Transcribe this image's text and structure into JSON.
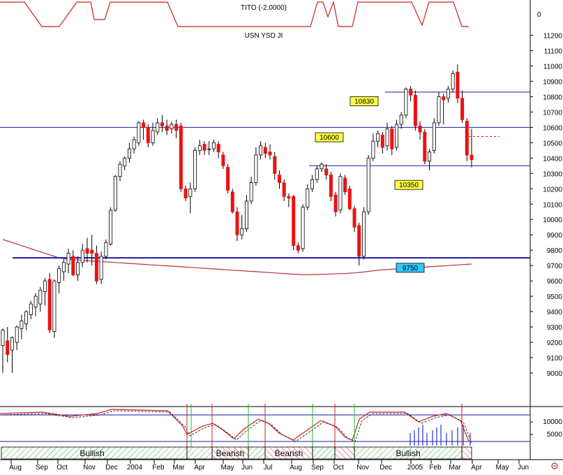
{
  "indicator_top": {
    "label": "TITO (-2.0000)",
    "axis_label": "0",
    "color": "#cc2222"
  },
  "main_chart_label": "USN YSD JI",
  "chart_data": {
    "type": "candlestick",
    "ylim": [
      8800,
      11250
    ],
    "y_ticks": [
      9000,
      9100,
      9200,
      9300,
      9400,
      9500,
      9600,
      9700,
      9800,
      9900,
      10000,
      10100,
      10200,
      10300,
      10400,
      10500,
      10600,
      10700,
      10800,
      10900,
      11000,
      11100,
      11200
    ],
    "y_tick_labels": [
      "9000",
      "9100",
      "9200",
      "9300",
      "9400",
      "9500",
      "9600",
      "9700",
      "9800",
      "9900",
      "10000",
      "10100",
      "10200",
      "10300",
      "10400",
      "10500",
      "10600",
      "10700",
      "10800",
      "10900",
      "11000",
      "11100",
      "11200"
    ],
    "x_labels": [
      "Aug",
      "Sep",
      "Oct",
      "Nov",
      "Dec",
      "2004",
      "Feb",
      "Mar",
      "Apr",
      "May",
      "Jun",
      "Jul",
      "Aug",
      "Sep",
      "Oct",
      "Nov",
      "Dec",
      "2005",
      "Feb",
      "Mar",
      "Apr",
      "May",
      "Jun"
    ],
    "candles": [
      [
        9180,
        9280,
        9000,
        9290
      ],
      [
        9210,
        9120,
        9070,
        9300
      ],
      [
        9150,
        9230,
        9000,
        9240
      ],
      [
        9200,
        9300,
        9150,
        9310
      ],
      [
        9290,
        9340,
        9220,
        9380
      ],
      [
        9320,
        9400,
        9280,
        9410
      ],
      [
        9380,
        9450,
        9350,
        9470
      ],
      [
        9430,
        9500,
        9370,
        9520
      ],
      [
        9450,
        9540,
        9400,
        9560
      ],
      [
        9530,
        9600,
        9440,
        9620
      ],
      [
        9610,
        9280,
        9260,
        9650
      ],
      [
        9270,
        9600,
        9230,
        9610
      ],
      [
        9590,
        9680,
        9520,
        9700
      ],
      [
        9660,
        9720,
        9600,
        9740
      ],
      [
        9710,
        9780,
        9650,
        9810
      ],
      [
        9760,
        9640,
        9630,
        9800
      ],
      [
        9640,
        9720,
        9600,
        9760
      ],
      [
        9720,
        9800,
        9690,
        9840
      ],
      [
        9810,
        9780,
        9720,
        9880
      ],
      [
        9800,
        9780,
        9700,
        9900
      ],
      [
        9780,
        9600,
        9580,
        9830
      ],
      [
        9610,
        9760,
        9580,
        9790
      ],
      [
        9760,
        9850,
        9740,
        9870
      ],
      [
        9840,
        10060,
        9830,
        10080
      ],
      [
        10060,
        10280,
        10050,
        10290
      ],
      [
        10280,
        10360,
        10250,
        10380
      ],
      [
        10350,
        10400,
        10320,
        10410
      ],
      [
        10400,
        10460,
        10370,
        10500
      ],
      [
        10460,
        10520,
        10430,
        10540
      ],
      [
        10500,
        10630,
        10480,
        10640
      ],
      [
        10630,
        10600,
        10520,
        10650
      ],
      [
        10600,
        10500,
        10470,
        10620
      ],
      [
        10500,
        10580,
        10480,
        10630
      ],
      [
        10570,
        10630,
        10550,
        10660
      ],
      [
        10630,
        10610,
        10570,
        10680
      ],
      [
        10610,
        10580,
        10550,
        10650
      ],
      [
        10590,
        10620,
        10560,
        10640
      ],
      [
        10620,
        10580,
        10530,
        10650
      ],
      [
        10610,
        10200,
        10180,
        10630
      ],
      [
        10200,
        10140,
        10120,
        10220
      ],
      [
        10150,
        10200,
        10040,
        10240
      ],
      [
        10200,
        10450,
        10180,
        10470
      ],
      [
        10450,
        10480,
        10420,
        10520
      ],
      [
        10490,
        10450,
        10420,
        10510
      ],
      [
        10460,
        10460,
        10420,
        10510
      ],
      [
        10460,
        10500,
        10440,
        10520
      ],
      [
        10490,
        10440,
        10400,
        10510
      ],
      [
        10420,
        10350,
        10330,
        10440
      ],
      [
        10340,
        10190,
        10170,
        10360
      ],
      [
        10180,
        10050,
        10040,
        10200
      ],
      [
        10050,
        9900,
        9860,
        10080
      ],
      [
        9900,
        9940,
        9870,
        10030
      ],
      [
        9940,
        10120,
        9920,
        10160
      ],
      [
        10120,
        10240,
        10100,
        10280
      ],
      [
        10240,
        10420,
        10220,
        10470
      ],
      [
        10420,
        10480,
        10390,
        10510
      ],
      [
        10470,
        10430,
        10400,
        10500
      ],
      [
        10440,
        10420,
        10390,
        10490
      ],
      [
        10410,
        10300,
        10260,
        10440
      ],
      [
        10290,
        10240,
        10200,
        10320
      ],
      [
        10240,
        10150,
        10120,
        10260
      ],
      [
        10150,
        10140,
        10080,
        10170
      ],
      [
        10150,
        9830,
        9800,
        10160
      ],
      [
        9830,
        9800,
        9780,
        9850
      ],
      [
        9810,
        10080,
        9790,
        10100
      ],
      [
        10080,
        10200,
        10060,
        10230
      ],
      [
        10200,
        10260,
        10180,
        10290
      ],
      [
        10260,
        10330,
        10240,
        10350
      ],
      [
        10330,
        10360,
        10310,
        10370
      ],
      [
        10330,
        10290,
        10260,
        10360
      ],
      [
        10290,
        10150,
        10120,
        10310
      ],
      [
        10160,
        10050,
        10020,
        10180
      ],
      [
        10060,
        10280,
        10040,
        10300
      ],
      [
        10270,
        10180,
        10160,
        10290
      ],
      [
        10200,
        10070,
        10060,
        10220
      ],
      [
        10070,
        9950,
        9920,
        10090
      ],
      [
        9960,
        9760,
        9700,
        9980
      ],
      [
        9760,
        10050,
        9740,
        10080
      ],
      [
        10050,
        10400,
        10030,
        10420
      ],
      [
        10400,
        10510,
        10380,
        10560
      ],
      [
        10510,
        10560,
        10470,
        10580
      ],
      [
        10550,
        10470,
        10430,
        10570
      ],
      [
        10480,
        10590,
        10450,
        10630
      ],
      [
        10590,
        10460,
        10420,
        10610
      ],
      [
        10470,
        10620,
        10450,
        10650
      ],
      [
        10620,
        10680,
        10590,
        10700
      ],
      [
        10680,
        10850,
        10660,
        10860
      ],
      [
        10850,
        10810,
        10770,
        10870
      ],
      [
        10810,
        10610,
        10580,
        10840
      ],
      [
        10610,
        10570,
        10520,
        10640
      ],
      [
        10570,
        10380,
        10360,
        10590
      ],
      [
        10380,
        10440,
        10320,
        10460
      ],
      [
        10450,
        10630,
        10430,
        10660
      ],
      [
        10630,
        10800,
        10610,
        10830
      ],
      [
        10800,
        10780,
        10620,
        10820
      ],
      [
        10790,
        10850,
        10760,
        10870
      ],
      [
        10850,
        10950,
        10830,
        10970
      ],
      [
        10960,
        10790,
        10760,
        11010
      ],
      [
        10790,
        10650,
        10630,
        10840
      ],
      [
        10640,
        10420,
        10380,
        10660
      ],
      [
        10420,
        10390,
        10340,
        10590
      ]
    ],
    "moving_average": [
      9870,
      9860,
      9850,
      9840,
      9830,
      9820,
      9810,
      9800,
      9790,
      9780,
      9770,
      9760,
      9750,
      9745,
      9740,
      9738,
      9736,
      9734,
      9732,
      9730,
      9728,
      9726,
      9724,
      9722,
      9720,
      9718,
      9716,
      9714,
      9712,
      9710,
      9708,
      9706,
      9704,
      9702,
      9700,
      9698,
      9696,
      9694,
      9692,
      9690,
      9688,
      9686,
      9684,
      9682,
      9680,
      9678,
      9676,
      9674,
      9672,
      9670,
      9668,
      9666,
      9664,
      9662,
      9660,
      9658,
      9656,
      9654,
      9652,
      9650,
      9648,
      9646,
      9644,
      9642,
      9640,
      9640,
      9641,
      9642,
      9643,
      9644,
      9645,
      9646,
      9647,
      9648,
      9650,
      9652,
      9655,
      9658,
      9662,
      9666,
      9670,
      9672,
      9674,
      9676,
      9678,
      9680,
      9682,
      9684,
      9686,
      9688,
      9690,
      9692,
      9694,
      9696,
      9698,
      9700,
      9702,
      9704,
      9706,
      9708,
      9710
    ],
    "hlines": [
      {
        "value": 10600,
        "label": "10600",
        "color": "#1a1aa8",
        "width": 1
      },
      {
        "value": 10830,
        "label": "10830",
        "color": "#1a1aa8",
        "width": 1
      },
      {
        "value": 10350,
        "label": "10350",
        "color": "#1a1aa8",
        "width": 1
      },
      {
        "value": 9750,
        "label": "9750",
        "color": "#1a1aa8",
        "width": 2
      }
    ],
    "candle_up_color": "#ffffff",
    "candle_down_color": "#ee1111",
    "ma_color": "#bb3333"
  },
  "oscillator": {
    "tick_labels": [
      "10000",
      "5000"
    ],
    "phases": [
      {
        "label": "Bullish",
        "type": "bull"
      },
      {
        "label": "Bearish",
        "type": "bear"
      },
      {
        "label": "Bearish",
        "type": "bear"
      },
      {
        "label": "Bullish",
        "type": "bull"
      }
    ]
  },
  "settings_icon": "gear-icon"
}
